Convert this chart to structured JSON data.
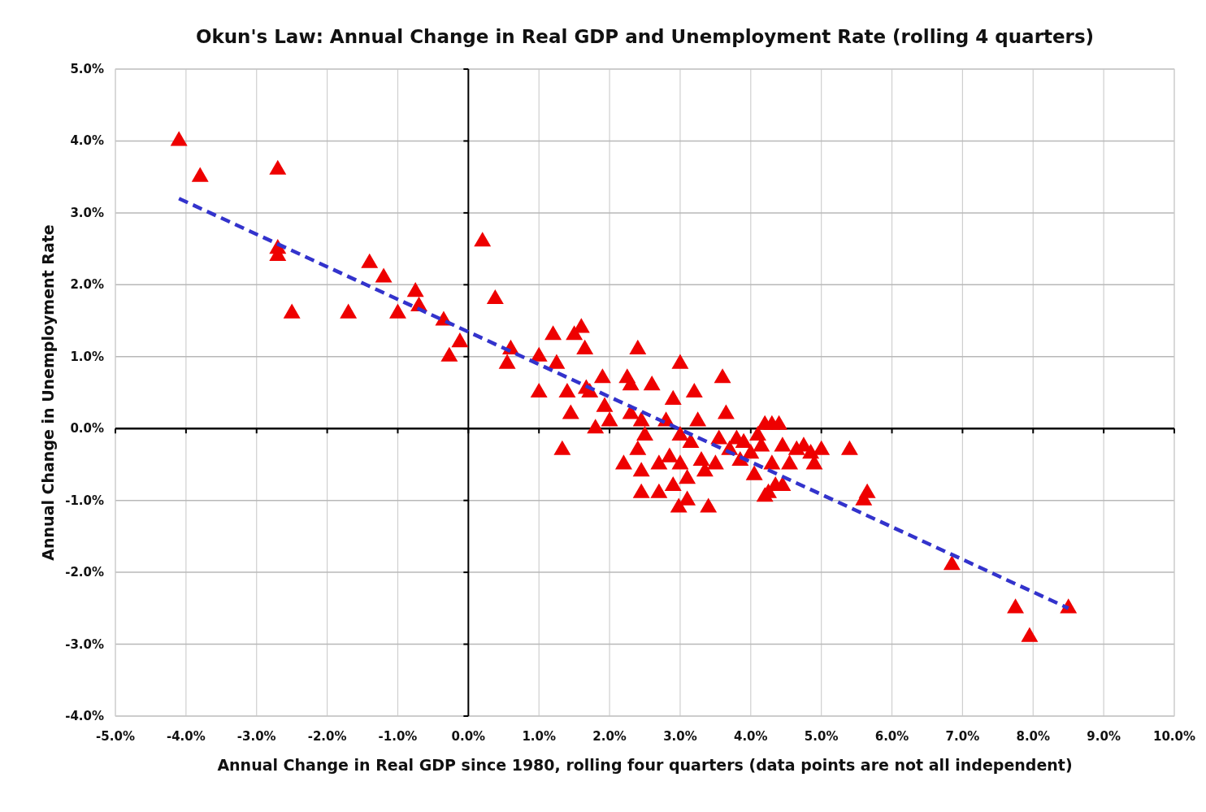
{
  "chart_data": {
    "type": "scatter",
    "title": "Okun's Law: Annual Change in Real GDP and Unemployment Rate (rolling 4 quarters)",
    "xlabel": "Annual Change in Real GDP  since 1980,  rolling four quarters (data points are not all independent)",
    "ylabel": "Annual Change in Unemployment Rate",
    "xlim": [
      -5,
      10
    ],
    "ylim": [
      -4,
      5
    ],
    "xticks": [
      {
        "value": -5,
        "label": "-5.0%"
      },
      {
        "value": -4,
        "label": "-4.0%"
      },
      {
        "value": -3,
        "label": "-3.0%"
      },
      {
        "value": -2,
        "label": "-2.0%"
      },
      {
        "value": -1,
        "label": "-1.0%"
      },
      {
        "value": 0,
        "label": "0.0%"
      },
      {
        "value": 1,
        "label": "1.0%"
      },
      {
        "value": 2,
        "label": "2.0%"
      },
      {
        "value": 3,
        "label": "3.0%"
      },
      {
        "value": 4,
        "label": "4.0%"
      },
      {
        "value": 5,
        "label": "5.0%"
      },
      {
        "value": 6,
        "label": "6.0%"
      },
      {
        "value": 7,
        "label": "7.0%"
      },
      {
        "value": 8,
        "label": "8.0%"
      },
      {
        "value": 9,
        "label": "9.0%"
      },
      {
        "value": 10,
        "label": "10.0%"
      }
    ],
    "yticks": [
      {
        "value": -4,
        "label": "-4.0%"
      },
      {
        "value": -3,
        "label": "-3.0%"
      },
      {
        "value": -2,
        "label": "-2.0%"
      },
      {
        "value": -1,
        "label": "-1.0%"
      },
      {
        "value": 0,
        "label": "0.0%"
      },
      {
        "value": 1,
        "label": "1.0%"
      },
      {
        "value": 2,
        "label": "2.0%"
      },
      {
        "value": 3,
        "label": "3.0%"
      },
      {
        "value": 4,
        "label": "4.0%"
      },
      {
        "value": 5,
        "label": "5.0%"
      }
    ],
    "grid": true,
    "series": [
      {
        "color": "#ee0000",
        "marker": "triangle",
        "x": [
          -4.1,
          -3.8,
          -2.7,
          -2.7,
          -2.7,
          -2.5,
          -1.7,
          -1.4,
          -1.2,
          -1.0,
          -0.75,
          -0.7,
          -0.35,
          -0.27,
          -0.12,
          0.2,
          0.38,
          0.55,
          0.6,
          1.0,
          1.0,
          1.2,
          1.25,
          1.33,
          1.4,
          1.45,
          1.5,
          1.6,
          1.65,
          1.67,
          1.72,
          1.8,
          1.9,
          1.93,
          2.0,
          2.25,
          2.2,
          2.3,
          2.3,
          2.4,
          2.4,
          2.45,
          2.45,
          2.5,
          2.45,
          2.6,
          2.7,
          2.7,
          2.8,
          2.85,
          2.9,
          2.9,
          3.0,
          3.0,
          3.0,
          2.98,
          3.1,
          3.1,
          3.15,
          3.2,
          3.25,
          3.3,
          3.35,
          3.4,
          3.5,
          3.55,
          3.6,
          3.65,
          3.7,
          3.8,
          3.85,
          3.9,
          4.0,
          4.05,
          4.1,
          4.15,
          4.2,
          4.2,
          4.25,
          4.3,
          4.35,
          4.3,
          4.4,
          4.45,
          4.45,
          4.55,
          4.65,
          4.75,
          4.85,
          4.9,
          5.0,
          5.4,
          5.6,
          5.65,
          6.85,
          7.75,
          7.95,
          8.5
        ],
        "values": [
          4.0,
          3.5,
          3.6,
          2.4,
          2.5,
          1.6,
          1.6,
          2.3,
          2.1,
          1.6,
          1.9,
          1.7,
          1.5,
          1.0,
          1.2,
          2.6,
          1.8,
          0.9,
          1.1,
          1.0,
          0.5,
          1.3,
          0.9,
          -0.3,
          0.5,
          0.2,
          1.3,
          1.4,
          1.1,
          0.55,
          0.5,
          0.0,
          0.7,
          0.3,
          0.1,
          0.7,
          -0.5,
          0.6,
          0.2,
          1.1,
          -0.3,
          -0.9,
          -0.6,
          -0.1,
          0.1,
          0.6,
          -0.9,
          -0.5,
          0.1,
          -0.4,
          0.4,
          -0.8,
          0.9,
          -0.1,
          -0.5,
          -1.1,
          -1.0,
          -0.7,
          -0.2,
          0.5,
          0.1,
          -0.45,
          -0.6,
          -1.1,
          -0.5,
          -0.15,
          0.7,
          0.2,
          -0.3,
          -0.15,
          -0.45,
          -0.2,
          -0.35,
          -0.65,
          -0.1,
          -0.25,
          0.05,
          -0.95,
          -0.9,
          -0.5,
          -0.8,
          0.05,
          0.05,
          -0.8,
          -0.25,
          -0.5,
          -0.3,
          -0.25,
          -0.35,
          -0.5,
          -0.3,
          -0.3,
          -1.0,
          -0.9,
          -1.9,
          -2.5,
          -2.9,
          -2.5
        ]
      },
      {
        "type": "line",
        "color": "#3333cc",
        "line_style": "dashed",
        "marker": "none",
        "x": [
          -4.1,
          8.5
        ],
        "values": [
          3.2,
          -2.5
        ]
      }
    ]
  }
}
